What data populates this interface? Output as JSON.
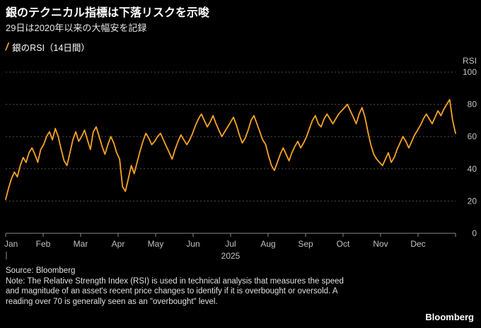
{
  "header": {
    "title": "銀のテクニカル指標は下落リスクを示唆",
    "subtitle": "29日は2020年以来の大幅安を記録"
  },
  "legend": {
    "marker": "/",
    "label": "銀のRSI（14日間）"
  },
  "colors": {
    "background": "#000000",
    "accent": "#F7A328",
    "grid": "#4d4d4d",
    "axis": "#8a8a8a",
    "tick_text": "#c0c0c0"
  },
  "chart_data": {
    "type": "line",
    "title": "銀のRSI（14日間）",
    "ylabel": "RSI",
    "ylim": [
      0,
      100
    ],
    "yticks": [
      0,
      20,
      40,
      60,
      80,
      100
    ],
    "grid": "horizontal-dotted",
    "legend_position": "top-left",
    "axis_label_position": "right",
    "x_axis": {
      "year": "2025",
      "year_start_marker": "|",
      "months": [
        "Jan",
        "Feb",
        "Mar",
        "Apr",
        "May",
        "Jun",
        "Jul",
        "Aug",
        "Sep",
        "Oct",
        "Nov",
        "Dec"
      ]
    },
    "series": [
      {
        "name": "銀のRSI（14日間）",
        "color": "#F7A328",
        "values": [
          21,
          28,
          34,
          38,
          35,
          42,
          47,
          44,
          50,
          53,
          49,
          44,
          52,
          55,
          60,
          63,
          58,
          65,
          60,
          52,
          45,
          42,
          50,
          58,
          63,
          57,
          60,
          64,
          58,
          52,
          63,
          66,
          60,
          54,
          49,
          55,
          60,
          56,
          50,
          46,
          29,
          26,
          34,
          42,
          37,
          44,
          51,
          57,
          62,
          59,
          55,
          57,
          60,
          62,
          58,
          54,
          50,
          46,
          52,
          57,
          61,
          58,
          55,
          58,
          62,
          67,
          71,
          74,
          70,
          66,
          69,
          73,
          68,
          64,
          60,
          63,
          66,
          69,
          72,
          67,
          61,
          56,
          59,
          64,
          70,
          73,
          68,
          63,
          58,
          55,
          48,
          42,
          39,
          44,
          49,
          53,
          49,
          45,
          50,
          54,
          57,
          53,
          56,
          60,
          65,
          70,
          73,
          68,
          66,
          71,
          74,
          71,
          68,
          71,
          74,
          76,
          78,
          80,
          76,
          72,
          68,
          74,
          78,
          72,
          63,
          55,
          49,
          46,
          44,
          42,
          46,
          50,
          44,
          47,
          52,
          56,
          60,
          57,
          53,
          57,
          61,
          64,
          67,
          71,
          74,
          71,
          68,
          72,
          76,
          73,
          77,
          80,
          83,
          70,
          62
        ]
      }
    ]
  },
  "footer": {
    "source": "Source: Bloomberg",
    "note_lines": [
      "Note: The Relative Strength Index (RSI) is used in technical analysis that measures the speed",
      "and magnitude of an asset's recent price changes to identify if it is overbought or oversold. A",
      "reading over 70 is generally seen as an \"overbought\" level."
    ],
    "brand": "Bloomberg"
  }
}
